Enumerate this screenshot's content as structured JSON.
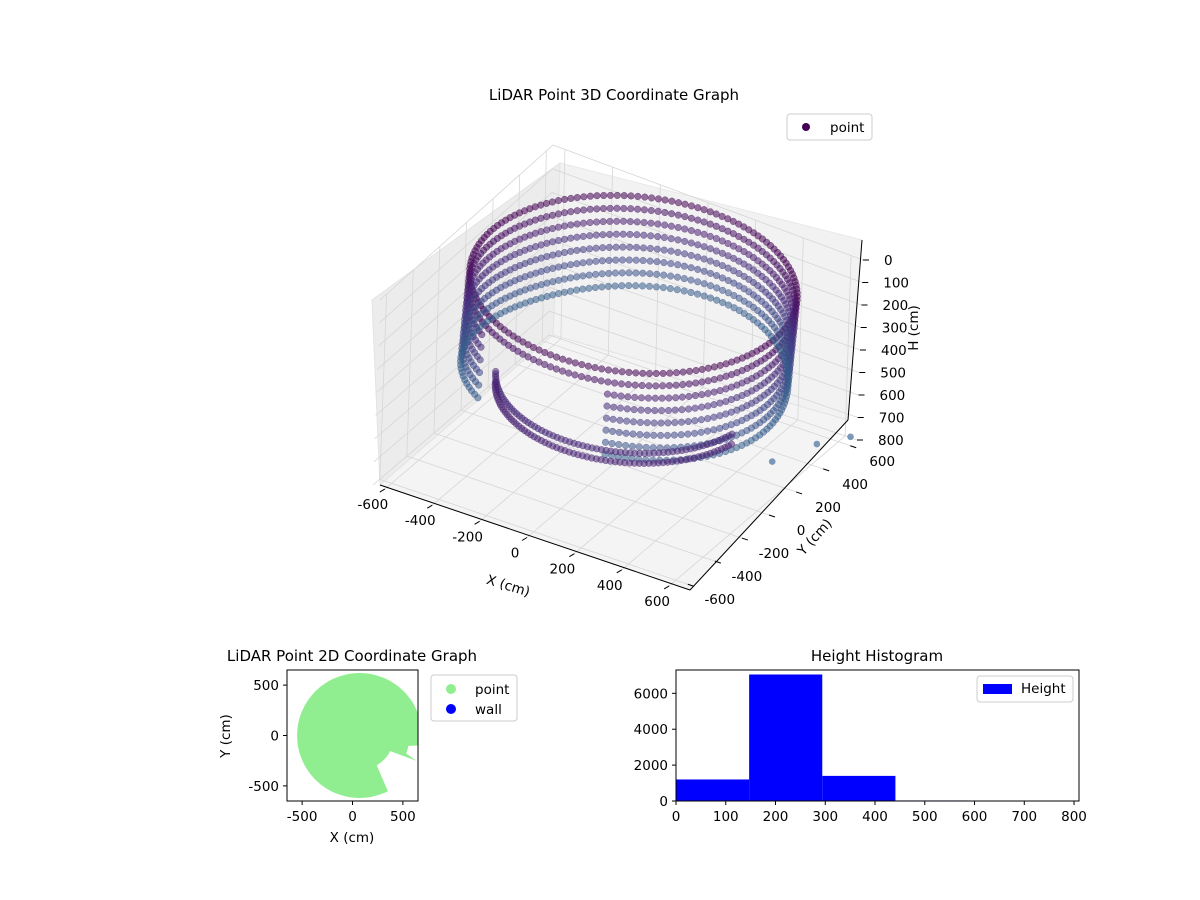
{
  "chart_data": [
    {
      "type": "scatter",
      "projection": "3d",
      "title": "LiDAR Point 3D Coordinate Graph",
      "xlabel": "X (cm)",
      "ylabel": "Y (cm)",
      "zlabel": "H (cm)",
      "xlim": [
        -650,
        650
      ],
      "ylim": [
        -650,
        650
      ],
      "zlim": [
        800,
        0
      ],
      "xticks": [
        -600,
        -400,
        -200,
        0,
        200,
        400,
        600
      ],
      "yticks": [
        -600,
        -400,
        -200,
        0,
        200,
        400,
        600
      ],
      "zticks": [
        0,
        100,
        200,
        300,
        400,
        500,
        600,
        700,
        800
      ],
      "legend": {
        "position": "top-right",
        "entries": [
          "point"
        ]
      },
      "grid": true,
      "colormap": "viridis",
      "series": [
        {
          "name": "point",
          "shape": "partial cylindrical wall",
          "radius_cm": 600,
          "center_cm": [
            50,
            0
          ],
          "wall_height_range_cm": [
            0,
            430
          ],
          "lower_ring_height_cm": 430,
          "outlier_points": [
            {
              "x": 600,
              "y": 100,
              "h": 630
            },
            {
              "x": 620,
              "y": 400,
              "h": 700
            },
            {
              "x": 650,
              "y": 600,
              "h": 760
            }
          ]
        }
      ]
    },
    {
      "type": "scatter",
      "title": "LiDAR Point 2D Coordinate Graph",
      "xlabel": "X (cm)",
      "ylabel": "Y (cm)",
      "xlim": [
        -650,
        650
      ],
      "ylim": [
        -650,
        650
      ],
      "xticks": [
        -500,
        0,
        500
      ],
      "yticks": [
        -500,
        0,
        500
      ],
      "legend": {
        "position": "outside-right",
        "entries": [
          "point",
          "wall"
        ]
      },
      "colors": {
        "point": "#90ee90",
        "wall": "#0000ff"
      },
      "series": [
        {
          "name": "point",
          "shape": "filled disc",
          "radius_cm": 620,
          "center_cm": [
            70,
            0
          ]
        },
        {
          "name": "wall"
        }
      ]
    },
    {
      "type": "bar",
      "subtype": "histogram",
      "title": "Height Histogram",
      "xlabel": "",
      "ylabel": "",
      "xlim": [
        0,
        810
      ],
      "ylim": [
        0,
        7300
      ],
      "xticks": [
        0,
        100,
        200,
        300,
        400,
        500,
        600,
        700,
        800
      ],
      "yticks": [
        0,
        2000,
        4000,
        6000
      ],
      "legend": {
        "position": "top-right",
        "entries": [
          "Height"
        ]
      },
      "color": "#0000ff",
      "bins": [
        {
          "x0": 0,
          "x1": 147,
          "count": 1200
        },
        {
          "x0": 147,
          "x1": 294,
          "count": 7050
        },
        {
          "x0": 294,
          "x1": 441,
          "count": 1400
        },
        {
          "x0": 441,
          "x1": 588,
          "count": 30
        },
        {
          "x0": 588,
          "x1": 735,
          "count": 20
        },
        {
          "x0": 735,
          "x1": 810,
          "count": 10
        }
      ]
    }
  ]
}
